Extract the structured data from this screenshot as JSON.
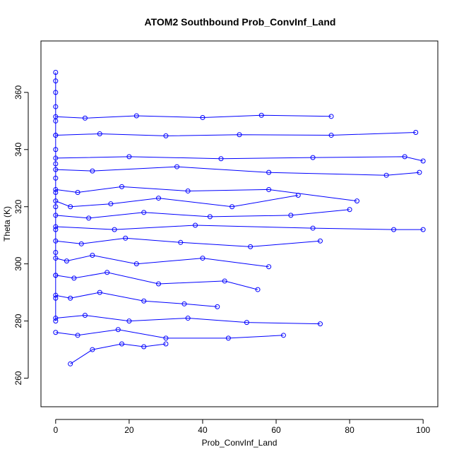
{
  "chart_data": {
    "type": "line",
    "title": "ATOM2 Southbound Prob_ConvInf_Land",
    "xlabel": "Prob_ConvInf_Land",
    "ylabel": "Theta (K)",
    "xlim": [
      -4,
      104
    ],
    "ylim": [
      250,
      378
    ],
    "xticks": [
      0,
      20,
      40,
      60,
      80,
      100
    ],
    "yticks": [
      260,
      280,
      300,
      320,
      340,
      360
    ],
    "marker": "open-circle",
    "grid": false,
    "legend": "none",
    "color": "#0000ff",
    "note_series": "overplotted profile traces; representative sample of plotted points",
    "series": [
      {
        "x": [
          0,
          0,
          0,
          0,
          0,
          0,
          0,
          0,
          0,
          0,
          0,
          0,
          0,
          0,
          0,
          0
        ],
        "y": [
          367,
          364,
          360,
          355,
          350,
          345,
          340,
          335,
          330,
          325,
          320,
          312,
          304,
          296,
          288,
          280
        ]
      },
      {
        "x": [
          0,
          8,
          22,
          40,
          56,
          75
        ],
        "y": [
          351.5,
          351,
          351.8,
          351.2,
          352,
          351.6
        ]
      },
      {
        "x": [
          0,
          12,
          30,
          50,
          75,
          98
        ],
        "y": [
          345,
          345.5,
          344.8,
          345.2,
          345,
          346
        ]
      },
      {
        "x": [
          0,
          20,
          45,
          70,
          95,
          100
        ],
        "y": [
          337,
          337.5,
          336.8,
          337.2,
          337.5,
          336
        ]
      },
      {
        "x": [
          0,
          10,
          33,
          58,
          90,
          99
        ],
        "y": [
          333,
          332.5,
          334,
          332,
          331,
          332
        ]
      },
      {
        "x": [
          0,
          6,
          18,
          36,
          58,
          82
        ],
        "y": [
          326,
          325,
          327,
          325.5,
          326,
          322
        ]
      },
      {
        "x": [
          0,
          4,
          15,
          28,
          48,
          66
        ],
        "y": [
          322,
          320,
          321,
          323,
          320,
          324
        ]
      },
      {
        "x": [
          0,
          9,
          24,
          42,
          64,
          80
        ],
        "y": [
          317,
          316,
          318,
          316.5,
          317,
          319
        ]
      },
      {
        "x": [
          0,
          16,
          38,
          70,
          92,
          100
        ],
        "y": [
          313,
          312,
          313.5,
          312.5,
          312,
          312
        ]
      },
      {
        "x": [
          0,
          7,
          19,
          34,
          53,
          72
        ],
        "y": [
          308,
          307,
          309,
          307.5,
          306,
          308
        ]
      },
      {
        "x": [
          0,
          3,
          10,
          22,
          40,
          58
        ],
        "y": [
          302,
          301,
          303,
          300,
          302,
          299
        ]
      },
      {
        "x": [
          0,
          5,
          14,
          28,
          46,
          55
        ],
        "y": [
          296,
          295,
          297,
          293,
          294,
          291
        ]
      },
      {
        "x": [
          0,
          4,
          12,
          24,
          35,
          44
        ],
        "y": [
          289,
          288,
          290,
          287,
          286,
          285
        ]
      },
      {
        "x": [
          0,
          8,
          20,
          36,
          52,
          72
        ],
        "y": [
          281,
          282,
          280,
          281,
          279.5,
          279
        ]
      },
      {
        "x": [
          0,
          6,
          17,
          30,
          47,
          62
        ],
        "y": [
          276,
          275,
          277,
          274,
          274,
          275
        ]
      },
      {
        "x": [
          4,
          10,
          18,
          24,
          30
        ],
        "y": [
          265,
          270,
          272,
          271,
          272
        ]
      }
    ]
  }
}
